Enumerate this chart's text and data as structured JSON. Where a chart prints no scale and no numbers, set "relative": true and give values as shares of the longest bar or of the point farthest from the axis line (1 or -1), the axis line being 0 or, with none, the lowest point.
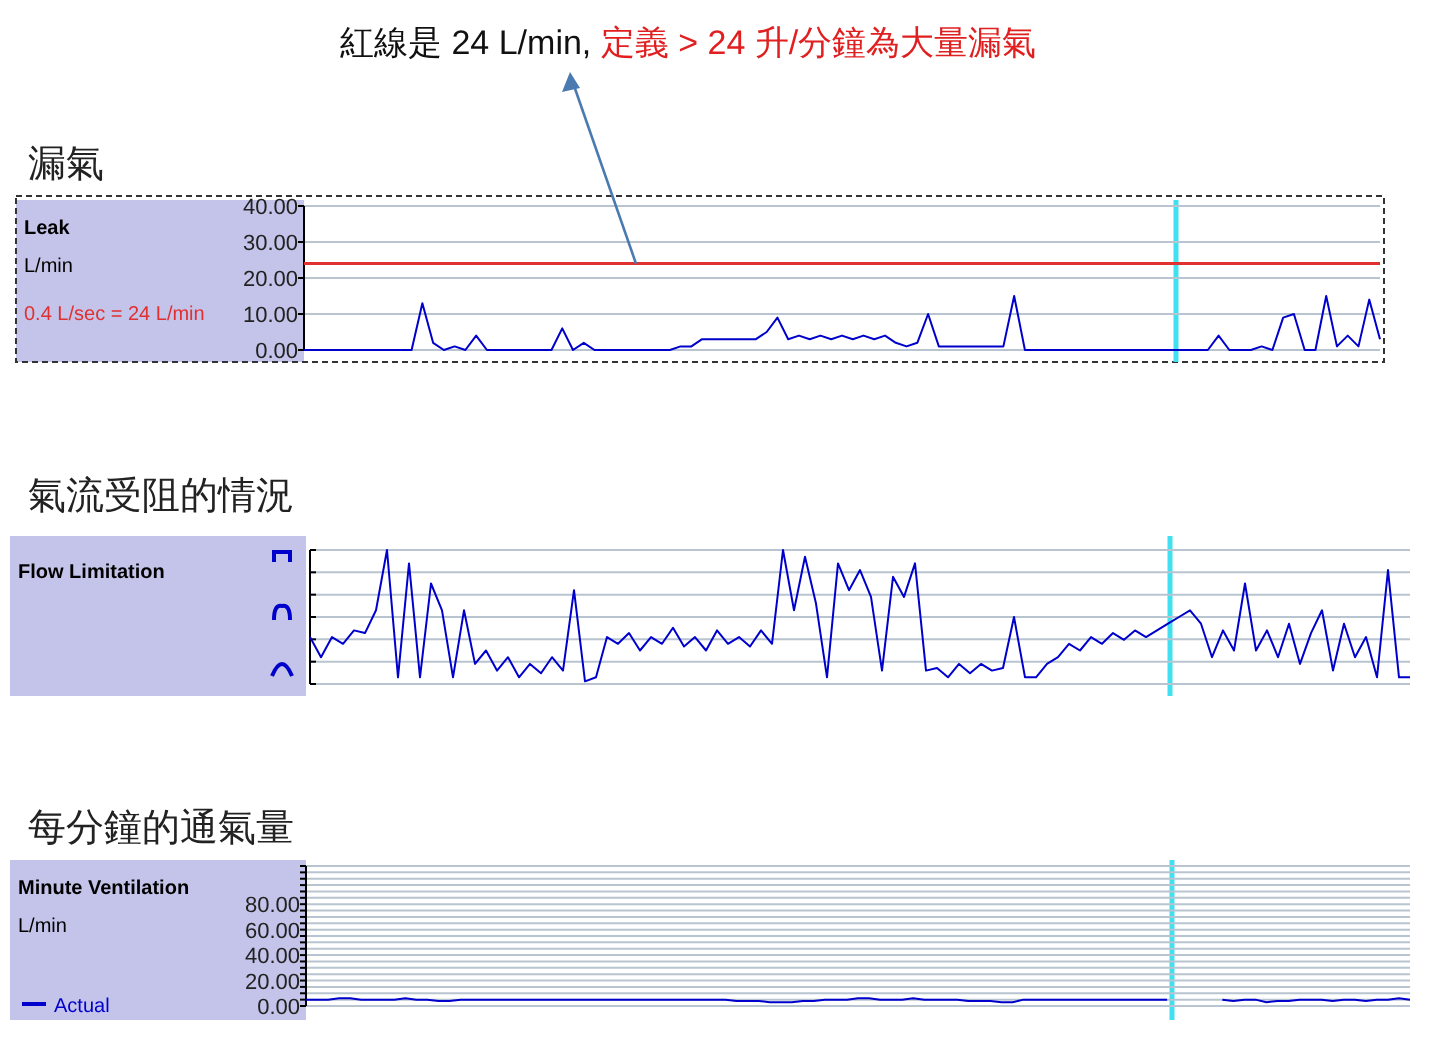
{
  "chart_data": [
    {
      "type": "line",
      "title": "漏氣",
      "ylabel": "L/min",
      "ylim": [
        0,
        40
      ],
      "yticks": [
        {
          "value": 0,
          "label": "0.00"
        },
        {
          "value": 10,
          "label": "10.00"
        },
        {
          "value": 20,
          "label": "20.00"
        },
        {
          "value": 30,
          "label": "30.00"
        },
        {
          "value": 40,
          "label": "40.00"
        }
      ],
      "grid": "y",
      "legend": false,
      "categories": [
        null,
        null,
        null,
        null,
        null,
        null,
        null,
        null,
        null,
        null,
        null,
        null,
        null,
        null,
        null,
        null,
        null,
        null,
        null,
        null,
        null,
        null,
        null,
        null,
        null,
        null,
        null,
        null,
        null,
        null,
        null,
        null,
        null,
        null,
        null,
        null,
        null,
        null,
        null,
        null,
        null,
        null,
        null,
        null,
        null,
        null,
        null,
        null,
        null,
        null,
        null,
        null,
        null,
        null,
        null,
        null,
        null,
        null,
        null,
        null,
        null,
        null,
        null,
        null,
        null,
        null,
        null,
        null,
        null,
        null,
        null,
        null,
        null,
        null,
        null,
        null,
        null,
        null,
        null,
        null,
        null,
        null,
        null,
        null,
        null,
        null,
        null,
        null,
        null,
        null,
        null,
        null,
        null,
        null,
        null,
        null,
        null,
        null,
        null,
        null,
        null
      ],
      "annotations": [
        "Leak",
        "紅線是 24 L/min,",
        "定義 > 24 升/分鐘為大量漏氣"
      ],
      "ref_lines": [
        {
          "axis": "y",
          "value": 24,
          "label": "0.4 L/sec = 24 L/min",
          "color": "#e03030"
        }
      ],
      "series": [
        {
          "color": "#0000cc",
          "values": [
            0,
            0,
            0,
            0,
            0,
            0,
            0,
            0,
            0,
            0,
            0,
            13,
            2,
            0,
            1,
            0,
            4,
            0,
            0,
            0,
            0,
            0,
            0,
            0,
            6,
            0,
            2,
            0,
            0,
            0,
            0,
            0,
            0,
            0,
            0,
            1,
            1,
            3,
            3,
            3,
            3,
            3,
            3,
            5,
            9,
            3,
            4,
            3,
            4,
            3,
            4,
            3,
            4,
            3,
            4,
            2,
            1,
            2,
            10,
            1,
            1,
            1,
            1,
            1,
            1,
            1,
            15,
            0,
            0,
            0,
            0,
            0,
            0,
            0,
            0,
            0,
            0,
            0,
            0,
            0,
            0,
            0,
            0,
            0,
            0,
            4,
            0,
            0,
            0,
            1,
            0,
            9,
            10,
            0,
            0,
            15,
            1,
            4,
            1,
            14,
            3
          ]
        }
      ]
    },
    {
      "type": "line",
      "title": "氣流受阻的情況",
      "annotations": [
        "Flow Limitation"
      ],
      "relative": true,
      "grid": "y",
      "legend": false,
      "categories": [
        null,
        null,
        null,
        null,
        null,
        null,
        null,
        null,
        null,
        null,
        null,
        null,
        null,
        null,
        null,
        null,
        null,
        null,
        null,
        null,
        null,
        null,
        null,
        null,
        null,
        null,
        null,
        null,
        null,
        null,
        null,
        null,
        null,
        null,
        null,
        null,
        null,
        null,
        null,
        null,
        null,
        null,
        null,
        null,
        null,
        null,
        null,
        null,
        null,
        null,
        null,
        null,
        null,
        null,
        null,
        null,
        null,
        null,
        null,
        null,
        null,
        null,
        null,
        null,
        null,
        null,
        null,
        null,
        null,
        null,
        null,
        null,
        null,
        null,
        null,
        null,
        null,
        null,
        null,
        null,
        null,
        null,
        null,
        null,
        null,
        null,
        null,
        null,
        null,
        null,
        null,
        null,
        null,
        null,
        null,
        null,
        null,
        null,
        null,
        null,
        null
      ],
      "series": [
        {
          "color": "#0000cc",
          "values": [
            0.35,
            0.2,
            0.35,
            0.3,
            0.4,
            0.38,
            0.55,
            1.0,
            0.05,
            0.9,
            0.05,
            0.75,
            0.55,
            0.05,
            0.55,
            0.15,
            0.25,
            0.1,
            0.2,
            0.05,
            0.15,
            0.08,
            0.2,
            0.1,
            0.7,
            0.02,
            0.05,
            0.35,
            0.3,
            0.38,
            0.25,
            0.35,
            0.3,
            0.42,
            0.28,
            0.35,
            0.25,
            0.4,
            0.3,
            0.35,
            0.28,
            0.4,
            0.3,
            1.0,
            0.55,
            0.95,
            0.6,
            0.05,
            0.9,
            0.7,
            0.85,
            0.65,
            0.1,
            0.8,
            0.65,
            0.9,
            0.1,
            0.12,
            0.05,
            0.15,
            0.08,
            0.15,
            0.1,
            0.12,
            0.5,
            0.05,
            0.05,
            0.15,
            0.2,
            0.3,
            0.25,
            0.35,
            0.3,
            0.38,
            0.33,
            0.4,
            0.35,
            0.4,
            0.45,
            0.5,
            0.55,
            0.45,
            0.2,
            0.4,
            0.25,
            0.75,
            0.25,
            0.4,
            0.2,
            0.45,
            0.15,
            0.38,
            0.55,
            0.1,
            0.45,
            0.2,
            0.35,
            0.05,
            0.85,
            0.05,
            0.05
          ]
        }
      ]
    },
    {
      "type": "line",
      "title": "每分鐘的通氣量",
      "annotations": [
        "Minute Ventilation"
      ],
      "ylabel": "L/min",
      "ylim": [
        0,
        110
      ],
      "yticks": [
        {
          "value": 0,
          "label": "0.00"
        },
        {
          "value": 5,
          "label": null
        },
        {
          "value": 10,
          "label": null
        },
        {
          "value": 15,
          "label": null
        },
        {
          "value": 20,
          "label": "20.00"
        },
        {
          "value": 25,
          "label": null
        },
        {
          "value": 30,
          "label": null
        },
        {
          "value": 35,
          "label": null
        },
        {
          "value": 40,
          "label": "40.00"
        },
        {
          "value": 45,
          "label": null
        },
        {
          "value": 50,
          "label": null
        },
        {
          "value": 55,
          "label": null
        },
        {
          "value": 60,
          "label": "60.00"
        },
        {
          "value": 65,
          "label": null
        },
        {
          "value": 70,
          "label": null
        },
        {
          "value": 75,
          "label": null
        },
        {
          "value": 80,
          "label": "80.00"
        },
        {
          "value": 85,
          "label": null
        },
        {
          "value": 90,
          "label": null
        },
        {
          "value": 95,
          "label": null
        },
        {
          "value": 100,
          "label": null
        },
        {
          "value": 105,
          "label": null
        },
        {
          "value": 110,
          "label": null
        }
      ],
      "grid": "y",
      "legend": "bottom left",
      "categories": [
        null,
        null,
        null,
        null,
        null,
        null,
        null,
        null,
        null,
        null,
        null,
        null,
        null,
        null,
        null,
        null,
        null,
        null,
        null,
        null,
        null,
        null,
        null,
        null,
        null,
        null,
        null,
        null,
        null,
        null,
        null,
        null,
        null,
        null,
        null,
        null,
        null,
        null,
        null,
        null,
        null,
        null,
        null,
        null,
        null,
        null,
        null,
        null,
        null,
        null,
        null,
        null,
        null,
        null,
        null,
        null,
        null,
        null,
        null,
        null,
        null,
        null,
        null,
        null,
        null,
        null,
        null,
        null,
        null,
        null,
        null,
        null,
        null,
        null,
        null,
        null,
        null,
        null,
        null,
        null,
        null,
        null,
        null,
        null,
        null,
        null,
        null,
        null,
        null,
        null,
        null,
        null,
        null,
        null,
        null,
        null,
        null,
        null,
        null,
        null,
        null
      ],
      "series": [
        {
          "name": "Actual",
          "color": "#0000cc",
          "values": [
            5,
            5,
            5,
            6,
            6,
            5,
            5,
            5,
            5,
            6,
            5,
            5,
            4,
            4,
            5,
            5,
            5,
            5,
            5,
            5,
            5,
            5,
            5,
            5,
            5,
            5,
            5,
            5,
            5,
            5,
            5,
            5,
            5,
            5,
            5,
            5,
            5,
            5,
            5,
            4,
            4,
            4,
            3,
            3,
            3,
            4,
            4,
            5,
            5,
            5,
            6,
            6,
            5,
            5,
            5,
            6,
            5,
            5,
            5,
            5,
            4,
            4,
            4,
            3,
            3,
            5,
            5,
            5,
            5,
            5,
            5,
            5,
            5,
            5,
            5,
            5,
            5,
            5,
            5,
            null,
            null,
            null,
            null,
            5,
            4,
            5,
            5,
            3,
            4,
            4,
            5,
            5,
            5,
            4,
            5,
            5,
            4,
            5,
            5,
            6,
            5
          ]
        }
      ]
    }
  ]
}
